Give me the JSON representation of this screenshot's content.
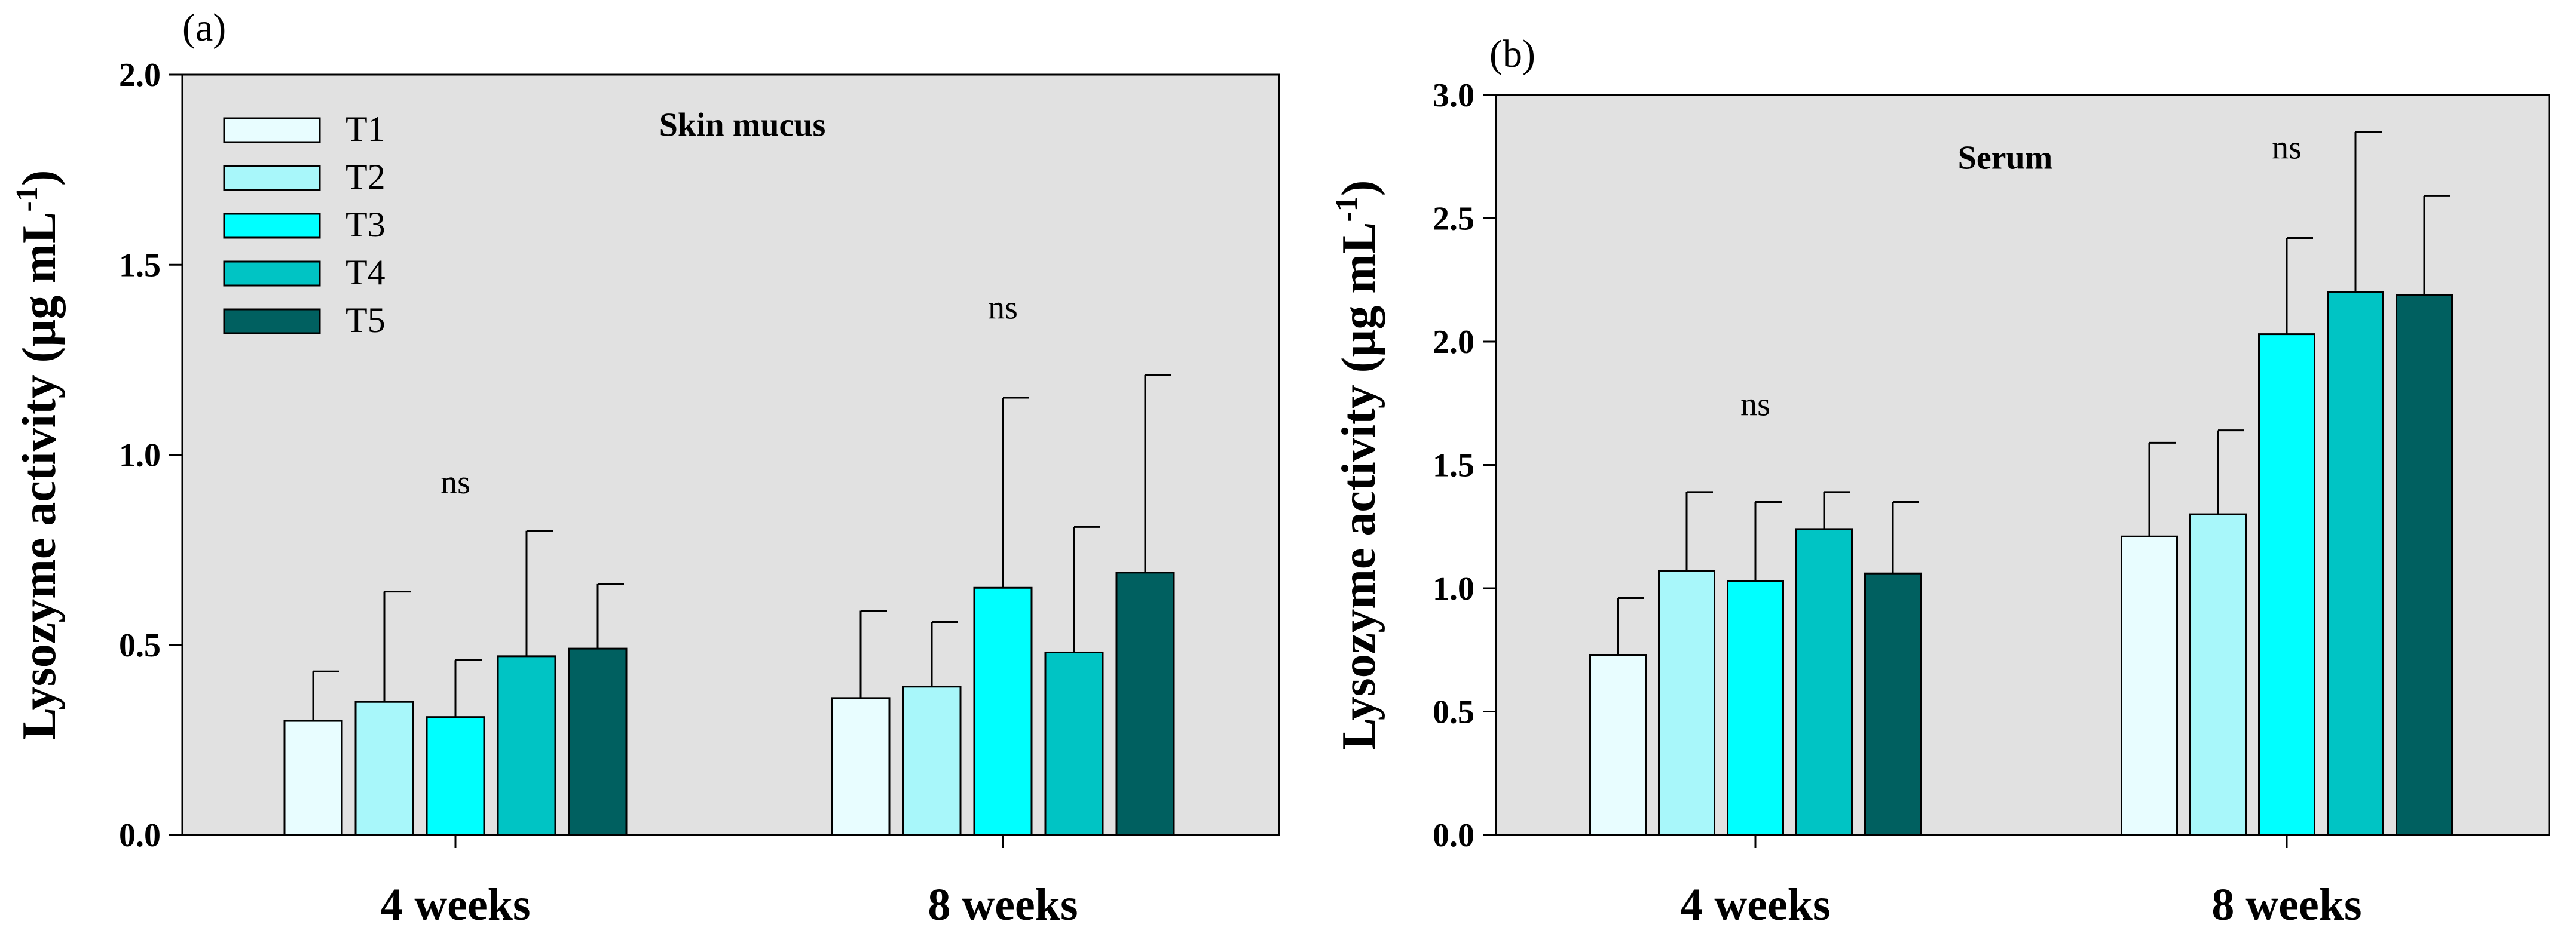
{
  "chart_data": [
    {
      "type": "bar",
      "panel_label": "(a)",
      "title": "Skin mucus",
      "ylabel_main": "Lysozyme activity (µg mL",
      "ylabel_sup": "-1",
      "ylabel_end": ")",
      "xlabel": "",
      "ylim": [
        0,
        2.0
      ],
      "yticks": [
        "0.0",
        "0.5",
        "1.0",
        "1.5",
        "2.0"
      ],
      "categories": [
        "4 weeks",
        "8 weeks"
      ],
      "legend": {
        "position": "top-left",
        "entries": [
          "T1",
          "T2",
          "T3",
          "T4",
          "T5"
        ]
      },
      "series": [
        {
          "name": "T1",
          "color": "#e8fdff",
          "values": [
            0.3,
            0.36
          ],
          "errors": [
            0.13,
            0.23
          ]
        },
        {
          "name": "T2",
          "color": "#a8f7fa",
          "values": [
            0.35,
            0.39
          ],
          "errors": [
            0.29,
            0.17
          ]
        },
        {
          "name": "T3",
          "color": "#00ffff",
          "values": [
            0.31,
            0.65
          ],
          "errors": [
            0.15,
            0.5
          ]
        },
        {
          "name": "T4",
          "color": "#00c4c4",
          "values": [
            0.47,
            0.48
          ],
          "errors": [
            0.33,
            0.33
          ]
        },
        {
          "name": "T5",
          "color": "#006060",
          "values": [
            0.49,
            0.69
          ],
          "errors": [
            0.17,
            0.52
          ]
        }
      ],
      "annotations": [
        {
          "category": 0,
          "text": "ns",
          "y": 0.93
        },
        {
          "category": 1,
          "text": "ns",
          "y": 1.39
        }
      ],
      "title_y": 1.87
    },
    {
      "type": "bar",
      "panel_label": "(b)",
      "title": "Serum",
      "ylabel_main": "Lysozyme activity (µg mL",
      "ylabel_sup": "-1",
      "ylabel_end": ")",
      "xlabel": "",
      "ylim": [
        0,
        3.0
      ],
      "yticks": [
        "0.0",
        "0.5",
        "1.0",
        "1.5",
        "2.0",
        "2.5",
        "3.0"
      ],
      "categories": [
        "4 weeks",
        "8 weeks"
      ],
      "legend": null,
      "series": [
        {
          "name": "T1",
          "color": "#e8fdff",
          "values": [
            0.73,
            1.21
          ],
          "errors": [
            0.23,
            0.38
          ]
        },
        {
          "name": "T2",
          "color": "#a8f7fa",
          "values": [
            1.07,
            1.3
          ],
          "errors": [
            0.32,
            0.34
          ]
        },
        {
          "name": "T3",
          "color": "#00ffff",
          "values": [
            1.03,
            2.03
          ],
          "errors": [
            0.32,
            0.39
          ]
        },
        {
          "name": "T4",
          "color": "#00c4c4",
          "values": [
            1.24,
            2.2
          ],
          "errors": [
            0.15,
            0.65
          ]
        },
        {
          "name": "T5",
          "color": "#006060",
          "values": [
            1.06,
            2.19
          ],
          "errors": [
            0.29,
            0.4
          ]
        }
      ],
      "annotations": [
        {
          "category": 0,
          "text": "ns",
          "y": 1.75
        },
        {
          "category": 1,
          "text": "ns",
          "y": 2.79
        }
      ],
      "title_y": 2.75
    }
  ]
}
